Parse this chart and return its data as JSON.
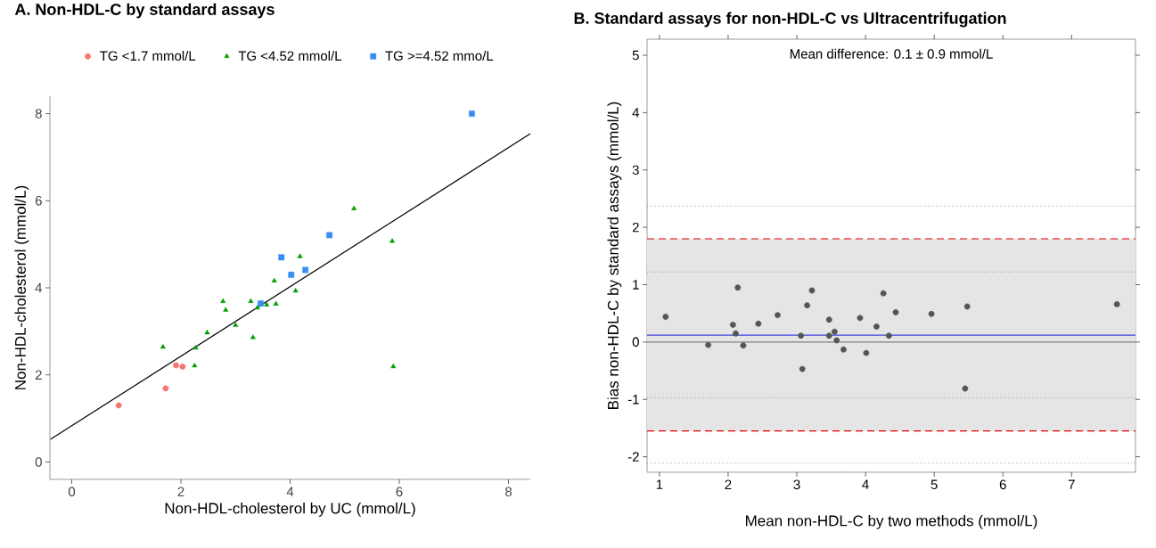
{
  "chart_data": [
    {
      "type": "scatter",
      "title": "A. Non-HDL-C  by standard assays",
      "xlabel": "Non-HDL-cholesterol by UC (mmol/L)",
      "ylabel": "Non-HDL-cholesterol (mmol/L)",
      "xlim": [
        -0.4,
        8.4
      ],
      "ylim": [
        -0.4,
        8.4
      ],
      "xticks": [
        0,
        2,
        4,
        6,
        8
      ],
      "yticks": [
        0,
        2,
        4,
        6,
        8
      ],
      "grid": false,
      "legend": "top",
      "series": [
        {
          "name": "TG <1.7 mmol/L",
          "color": "#f8766d",
          "marker": "circle",
          "x": [
            0.86,
            1.72,
            1.91,
            2.03
          ],
          "values": [
            1.3,
            1.69,
            2.22,
            2.19
          ]
        },
        {
          "name": "TG <4.52 mmol/L",
          "color": "#00a000",
          "marker": "triangle",
          "x": [
            1.67,
            2.25,
            2.27,
            2.48,
            2.77,
            2.82,
            3.0,
            3.28,
            3.32,
            3.4,
            3.57,
            3.71,
            3.74,
            4.1,
            4.18,
            5.17,
            5.87,
            5.89
          ],
          "values": [
            2.64,
            2.21,
            2.62,
            2.97,
            3.69,
            3.49,
            3.14,
            3.69,
            2.86,
            3.54,
            3.61,
            4.16,
            3.63,
            3.93,
            4.72,
            5.82,
            5.07,
            2.19
          ]
        },
        {
          "name": "TG >=4.52 mmo/L",
          "color": "#3a8df0",
          "marker": "square",
          "x": [
            3.46,
            3.84,
            4.02,
            4.28,
            4.72,
            7.33
          ],
          "values": [
            3.64,
            4.7,
            4.3,
            4.41,
            5.21,
            8.0
          ]
        },
        {
          "type": "line",
          "color": "#000000",
          "x": [
            -0.39,
            8.4
          ],
          "values": [
            0.52,
            7.54
          ]
        }
      ]
    },
    {
      "type": "scatter",
      "title": "B. Standard assays for non-HDL-C vs Ultracentrifugation",
      "xlabel": "Mean non-HDL-C by two methods (mmol/L)",
      "ylabel": "Bias non-HDL-C by standard assays (mmol/L)",
      "xlim": [
        0.82,
        7.93
      ],
      "ylim": [
        -2.27,
        5.28
      ],
      "xticks": [
        1,
        2,
        3,
        4,
        5,
        6,
        7
      ],
      "yticks": [
        -2,
        -1,
        0,
        1,
        2,
        3,
        4,
        5
      ],
      "grid": false,
      "legend": false,
      "annotations": [
        "Mean difference: 0.1 ± 0.9 mmol/L"
      ],
      "bands": [
        {
          "axis": "y",
          "from": -1.55,
          "to": 1.8,
          "color": "#e5e5e5"
        }
      ],
      "ref_lines": [
        {
          "axis": "y",
          "value": 0,
          "color": "#808080",
          "line_style": "solid"
        },
        {
          "axis": "y",
          "value": 0.12,
          "color": "#4040e0",
          "line_style": "solid"
        },
        {
          "axis": "y",
          "value": 1.8,
          "color": "#e00000",
          "line_style": "dashed"
        },
        {
          "axis": "y",
          "value": -1.55,
          "color": "#e00000",
          "line_style": "dashed"
        },
        {
          "axis": "y",
          "value": 2.37,
          "color": "#707070",
          "line_style": "dotted"
        },
        {
          "axis": "y",
          "value": 1.22,
          "color": "#707070",
          "line_style": "dotted"
        },
        {
          "axis": "y",
          "value": -0.97,
          "color": "#707070",
          "line_style": "dotted"
        },
        {
          "axis": "y",
          "value": -2.11,
          "color": "#707070",
          "line_style": "dotted"
        }
      ],
      "series": [
        {
          "color": "#555555",
          "marker": "circle",
          "x": [
            1.09,
            1.71,
            2.07,
            2.11,
            2.14,
            2.22,
            2.44,
            2.72,
            3.06,
            3.08,
            3.15,
            3.22,
            3.47,
            3.47,
            3.55,
            3.58,
            3.68,
            3.92,
            4.01,
            4.16,
            4.26,
            4.34,
            4.44,
            4.96,
            5.45,
            5.48,
            7.66
          ],
          "values": [
            0.44,
            -0.05,
            0.3,
            0.15,
            0.95,
            -0.06,
            0.32,
            0.47,
            0.11,
            -0.47,
            0.64,
            0.9,
            0.39,
            0.11,
            0.18,
            0.03,
            -0.13,
            0.42,
            -0.19,
            0.27,
            0.85,
            0.11,
            0.52,
            0.49,
            -0.81,
            0.62,
            0.66
          ]
        }
      ]
    }
  ]
}
